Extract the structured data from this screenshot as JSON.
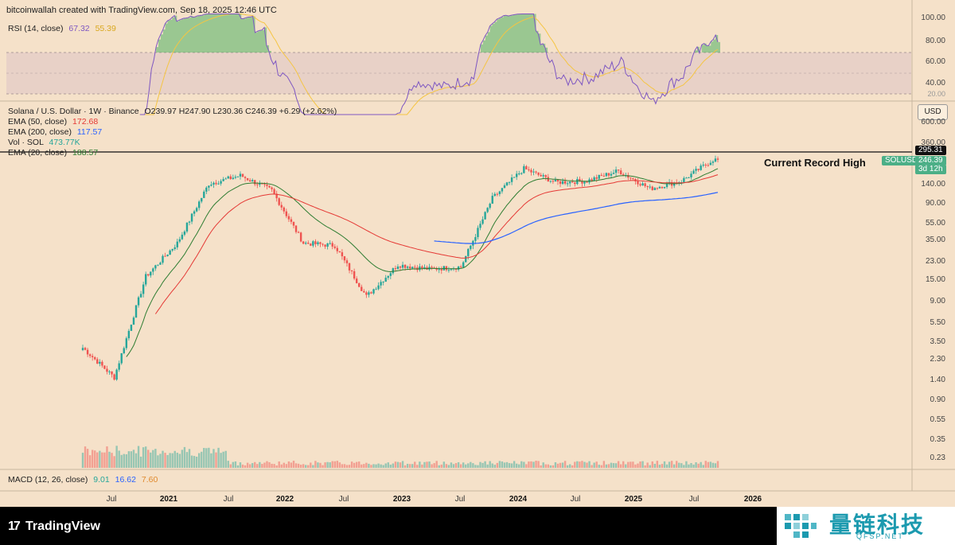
{
  "header": {
    "attribution": "bitcoinwallah created with TradingView.com, Sep 18, 2025 12:46 UTC"
  },
  "rsi_legend": {
    "label": "RSI (14, close)",
    "value": "67.32",
    "ma": "55.39"
  },
  "rsi_axis": [
    "100.00",
    "80.00",
    "60.00",
    "40.00",
    "20.00"
  ],
  "main_legend": {
    "symbol_line": "Solana / U.S. Dollar · 1W · Binance",
    "ohlc": "O239.97  H247.90  L230.36  C246.39  +6.29 (+2.62%)",
    "ema50_label": "EMA (50, close)",
    "ema50_value": "172.68",
    "ema200_label": "EMA (200, close)",
    "ema200_value": "117.57",
    "vol_label": "Vol · SOL",
    "vol_value": "473.77K",
    "ema20_label": "EMA (20, close)",
    "ema20_value": "188.57"
  },
  "currency": "USD",
  "price_axis": [
    "600.00",
    "360.00",
    "140.00",
    "90.00",
    "55.00",
    "35.00",
    "23.00",
    "15.00",
    "9.00",
    "5.50",
    "3.50",
    "2.30",
    "1.40",
    "0.90",
    "0.55",
    "0.35",
    "0.23"
  ],
  "price_tags": {
    "record": "295.31",
    "symbol": "SOLUSD",
    "last": "246.39",
    "countdown": "3d 12h"
  },
  "annotation": "Current Record High",
  "macd_legend": {
    "label": "MACD (12, 26, close)",
    "macd": "9.01",
    "signal": "16.62",
    "hist": "7.60"
  },
  "time_axis": [
    {
      "label": "Jul",
      "year": false
    },
    {
      "label": "2021",
      "year": true
    },
    {
      "label": "Jul",
      "year": false
    },
    {
      "label": "2022",
      "year": true
    },
    {
      "label": "Jul",
      "year": false
    },
    {
      "label": "2023",
      "year": true
    },
    {
      "label": "Jul",
      "year": false
    },
    {
      "label": "2024",
      "year": true
    },
    {
      "label": "Jul",
      "year": false
    },
    {
      "label": "2025",
      "year": true
    },
    {
      "label": "Jul",
      "year": false
    },
    {
      "label": "2026",
      "year": true
    }
  ],
  "footer": {
    "logo_text": "TradingView",
    "brand_name": "量链科技",
    "brand_sub": "QFSP.NET"
  },
  "colors": {
    "up": "#26a69a",
    "down": "#ef5350",
    "rsi": "#7e57c2",
    "rsi_ma": "#f5c542",
    "ema20": "#2e7d32",
    "ema50": "#e53935",
    "ema200": "#2962ff",
    "accent_brand": "#1c9aaf"
  },
  "chart_data": {
    "type": "candlestick",
    "symbol": "SOLUSD",
    "interval": "1W",
    "scale": "log",
    "record_high": 295.31,
    "last_close": 246.39,
    "price_ticks": [
      600,
      360,
      140,
      90,
      55,
      35,
      23,
      15,
      9,
      5.5,
      3.5,
      2.3,
      1.4,
      0.9,
      0.55,
      0.35,
      0.23
    ],
    "closes_by_quarter": [
      {
        "x": "2020-Q3",
        "close": 3.0
      },
      {
        "x": "2020-Q4",
        "close": 1.5
      },
      {
        "x": "2021-Q1",
        "close": 16
      },
      {
        "x": "2021-Q2",
        "close": 35
      },
      {
        "x": "2021-Q3",
        "close": 140
      },
      {
        "x": "2021-Q4",
        "close": 170
      },
      {
        "x": "2022-Q1",
        "close": 120
      },
      {
        "x": "2022-Q2",
        "close": 35
      },
      {
        "x": "2022-Q3",
        "close": 33
      },
      {
        "x": "2022-Q4",
        "close": 10
      },
      {
        "x": "2023-Q1",
        "close": 21
      },
      {
        "x": "2023-Q2",
        "close": 19
      },
      {
        "x": "2023-Q3",
        "close": 20
      },
      {
        "x": "2023-Q4",
        "close": 100
      },
      {
        "x": "2024-Q1",
        "close": 200
      },
      {
        "x": "2024-Q2",
        "close": 145
      },
      {
        "x": "2024-Q3",
        "close": 150
      },
      {
        "x": "2024-Q4",
        "close": 190
      },
      {
        "x": "2025-Q1",
        "close": 125
      },
      {
        "x": "2025-Q2",
        "close": 150
      },
      {
        "x": "2025-Q3",
        "close": 246.39
      }
    ],
    "rsi_range": [
      20,
      100
    ]
  }
}
